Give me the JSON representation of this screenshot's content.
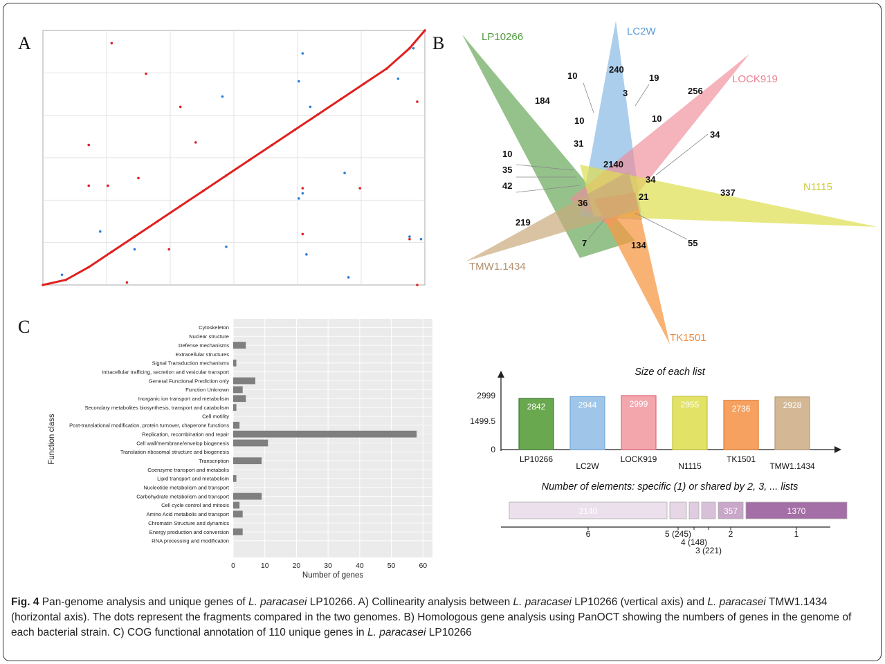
{
  "panels": {
    "a": "A",
    "b": "B",
    "c": "C"
  },
  "colors": {
    "red": "#e02020",
    "blue": "#2a7fd4",
    "bar": "#7f7f7f",
    "plot_bg": "#ebebeb"
  },
  "caption": {
    "fig": "Fig. 4",
    "t1": " Pan-genome analysis and unique genes of ",
    "sp1": "L. paracasei",
    "t2": " LP10266. A) Collinearity analysis between ",
    "sp2": "L. paracasei",
    "t3": " LP10266 (vertical axis) and ",
    "sp3": "L. paracasei",
    "t4": " TMW1.1434 (horizontal axis). The dots represent the fragments compared in the two genomes. B) Homologous gene analysis using PanOCT showing the numbers of genes in the genome of each bacterial strain. C) COG functional annotation of 110 unique genes in ",
    "sp4": "L. paracasei",
    "t5": " LP10266"
  },
  "chart_data": [
    {
      "type": "scatter",
      "panel": "A",
      "title": "",
      "xlabel": "",
      "ylabel": "",
      "xlim": [
        0,
        100
      ],
      "ylim": [
        0,
        100
      ],
      "series": [
        {
          "color": "red",
          "points": [
            [
              0,
              0
            ],
            [
              6,
              2
            ],
            [
              12,
              7
            ],
            [
              18,
              13
            ],
            [
              24,
              19
            ],
            [
              30,
              25
            ],
            [
              36,
              31
            ],
            [
              42,
              37
            ],
            [
              48,
              43
            ],
            [
              54,
              49
            ],
            [
              60,
              55
            ],
            [
              66,
              61
            ],
            [
              72,
              67
            ],
            [
              78,
              73
            ],
            [
              84,
              79
            ],
            [
              90,
              85
            ],
            [
              96,
              93
            ],
            [
              100,
              100
            ],
            [
              18,
              95
            ],
            [
              27,
              83
            ],
            [
              36,
              70
            ],
            [
              12,
              55
            ],
            [
              40,
              56
            ],
            [
              25,
              42
            ],
            [
              12,
              39
            ],
            [
              17,
              39
            ],
            [
              68,
              38
            ],
            [
              83,
              38
            ],
            [
              33,
              14
            ],
            [
              68,
              20
            ],
            [
              98,
              72
            ],
            [
              22,
              1
            ],
            [
              96,
              18
            ],
            [
              98,
              0
            ]
          ]
        },
        {
          "color": "blue",
          "points": [
            [
              68,
              91
            ],
            [
              97,
              93
            ],
            [
              93,
              81
            ],
            [
              47,
              74
            ],
            [
              67,
              80
            ],
            [
              70,
              70
            ],
            [
              79,
              44
            ],
            [
              67,
              34
            ],
            [
              68,
              36
            ],
            [
              24,
              14
            ],
            [
              48,
              15
            ],
            [
              69,
              12
            ],
            [
              80,
              3
            ],
            [
              96,
              19
            ],
            [
              99,
              18
            ],
            [
              5,
              4
            ],
            [
              15,
              21
            ]
          ]
        }
      ]
    },
    {
      "type": "venn",
      "panel": "B",
      "sets": [
        "LP10266",
        "LC2W",
        "LOCK919",
        "N1115",
        "TK1501",
        "TMW1.1434"
      ],
      "regions": [
        "184",
        "240",
        "256",
        "337",
        "134",
        "219",
        "2140",
        "10",
        "19",
        "3",
        "10",
        "10",
        "31",
        "34",
        "10",
        "35",
        "42",
        "34",
        "21",
        "36",
        "7",
        "55"
      ]
    },
    {
      "type": "bar",
      "panel": "C",
      "orientation": "horizontal",
      "xlabel": "Number of genes",
      "ylabel": "Function class",
      "xlim": [
        0,
        63
      ],
      "xticks": [
        "0",
        "10",
        "20",
        "30",
        "40",
        "50",
        "60"
      ],
      "categories": [
        "Cytoskeleton",
        "Nuclear structure",
        "Defense mechanisms",
        "Extracellular structures",
        "Signal Transduction mechanisms",
        "Intracellular trafficing, secretion and vesicular transport",
        "General Functional Prediction only",
        "Function Unknown",
        "Inorganic ion transport and metabolism",
        "Secondary metabolites biosynthesis, transport and catabolism",
        "Cell motility",
        "Post-translational modification, protein turnover, chaperone functions",
        "Replication, recombination and repair",
        "Cell wall/membrane/envelop biogenesis",
        "Translation ribosomal structure and biogenesis",
        "Transcription",
        "Coenzyme transport and metabolis",
        "Lipid transport and metabolism",
        "Nucleotide metabolism and transport",
        "Carbohydrate metabolism and transport",
        "Cell cycle control and mitosis",
        "Amino Acid metabolis and transport",
        "Chromatin Structure and dynamics",
        "Energy production and conversion",
        "RNA processing and modification"
      ],
      "values": [
        0,
        0,
        4,
        0,
        1,
        0,
        7,
        3,
        4,
        1,
        0,
        2,
        58,
        11,
        0,
        9,
        0,
        1,
        0,
        9,
        2,
        3,
        0,
        3,
        0
      ]
    },
    {
      "type": "bar",
      "panel": "B-lists",
      "title": "Size of each list",
      "yticks": [
        "2999",
        "1499.5",
        "0"
      ],
      "ylim": [
        0,
        2999
      ],
      "categories": [
        "LP10266",
        "LC2W",
        "LOCK919",
        "N1115",
        "TK1501",
        "TMW1.1434"
      ],
      "values": [
        2842,
        2944,
        2999,
        2955,
        2736,
        2928
      ],
      "value_labels": [
        "2842",
        "2944",
        "2999",
        "2955",
        "2736",
        "2928"
      ],
      "bar_colors": [
        "#6aa84f",
        "#9fc5e8",
        "#f4a6ad",
        "#e2e267",
        "#f6a15f",
        "#d4b896"
      ],
      "edge_colors": [
        "#3d7a33",
        "#6fa8dc",
        "#e06673",
        "#c4c43a",
        "#e07b2e",
        "#b69a74"
      ]
    },
    {
      "type": "bar",
      "panel": "B-shared",
      "title": "Number of elements: specific (1) or shared by 2, 3, ... lists",
      "segments": [
        {
          "label": "6",
          "value": 2140,
          "text": "2140",
          "color": "#ece0ec"
        },
        {
          "label": "5 (245)",
          "value": 245,
          "text": "",
          "color": "#e6d6e6"
        },
        {
          "label": "4 (148)",
          "value": 148,
          "text": "",
          "color": "#e0cce0"
        },
        {
          "label": "3 (221)",
          "value": 221,
          "text": "",
          "color": "#d8c0d8"
        },
        {
          "label": "2",
          "value": 357,
          "text": "357",
          "color": "#c9a7c9"
        },
        {
          "label": "1",
          "value": 1370,
          "text": "1370",
          "color": "#a46ea6"
        }
      ]
    }
  ]
}
